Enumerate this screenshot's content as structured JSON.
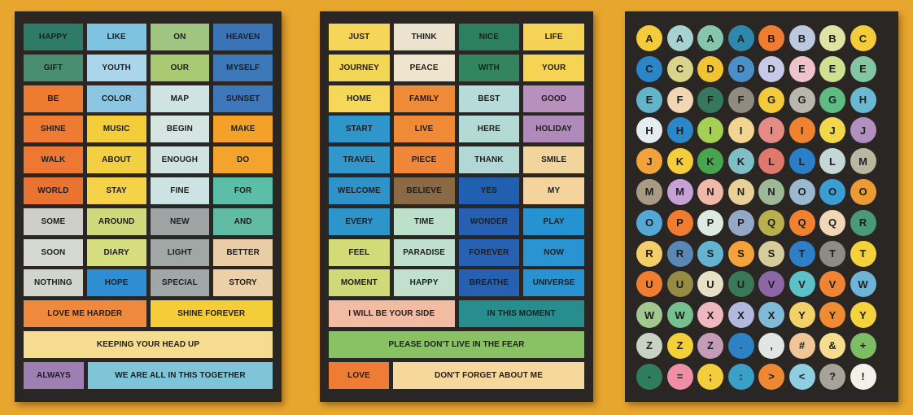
{
  "colors": {
    "background": "#e9a62e",
    "sheet": "#2a2624"
  },
  "sheet1": {
    "words": [
      {
        "t": "HAPPY",
        "c": "#2e7b68"
      },
      {
        "t": "LIKE",
        "c": "#7ec3df"
      },
      {
        "t": "ON",
        "c": "#9fc580"
      },
      {
        "t": "HEAVEN",
        "c": "#3a73b6"
      },
      {
        "t": "GIFT",
        "c": "#4a8e72"
      },
      {
        "t": "YOUTH",
        "c": "#aad5ea"
      },
      {
        "t": "OUR",
        "c": "#a9c973"
      },
      {
        "t": "MYSELF",
        "c": "#3d78b8"
      },
      {
        "t": "BE",
        "c": "#ef7a32"
      },
      {
        "t": "COLOR",
        "c": "#8dc6e2"
      },
      {
        "t": "MAP",
        "c": "#cfe3e3"
      },
      {
        "t": "SUNSET",
        "c": "#3f78ba"
      },
      {
        "t": "SHINE",
        "c": "#ef7b33"
      },
      {
        "t": "MUSIC",
        "c": "#f3cd3a"
      },
      {
        "t": "BEGIN",
        "c": "#d5e6e2"
      },
      {
        "t": "MAKE",
        "c": "#f4a129"
      },
      {
        "t": "WALK",
        "c": "#ee7833"
      },
      {
        "t": "ABOUT",
        "c": "#f3d041"
      },
      {
        "t": "ENOUGH",
        "c": "#cfe4e1"
      },
      {
        "t": "DO",
        "c": "#f4a42c"
      },
      {
        "t": "WORLD",
        "c": "#ea7331"
      },
      {
        "t": "STAY",
        "c": "#f5d349"
      },
      {
        "t": "FINE",
        "c": "#cbe3e2"
      },
      {
        "t": "FOR",
        "c": "#5bbea7"
      },
      {
        "t": "SOME",
        "c": "#cfcfca"
      },
      {
        "t": "AROUND",
        "c": "#cfd97b"
      },
      {
        "t": "NEW",
        "c": "#9ea4a4"
      },
      {
        "t": "AND",
        "c": "#62bba4"
      },
      {
        "t": "SOON",
        "c": "#d6d8d2"
      },
      {
        "t": "DIARY",
        "c": "#d6dd7e"
      },
      {
        "t": "LIGHT",
        "c": "#a1a7a5"
      },
      {
        "t": "BETTER",
        "c": "#e9cda6"
      },
      {
        "t": "NOTHING",
        "c": "#d2d4ce"
      },
      {
        "t": "HOPE",
        "c": "#2f8ed3"
      },
      {
        "t": "SPECIAL",
        "c": "#a0a7a6"
      },
      {
        "t": "STORY",
        "c": "#ecd0a9"
      }
    ],
    "phrases_row1": [
      {
        "t": "LOVE ME HARDER",
        "c": "#ef8a3c"
      },
      {
        "t": "SHINE FOREVER",
        "c": "#f4cd38"
      }
    ],
    "phrase_full": {
      "t": "KEEPING YOUR HEAD UP",
      "c": "#f6dc8e"
    },
    "phrases_last": [
      {
        "t": "ALWAYS",
        "c": "#9d7fb2"
      },
      {
        "t": "WE ARE ALL IN THIS TOGETHER",
        "c": "#7fc4d7"
      }
    ]
  },
  "sheet2": {
    "words": [
      {
        "t": "JUST",
        "c": "#f6d659"
      },
      {
        "t": "THINK",
        "c": "#ece3cf"
      },
      {
        "t": "NICE",
        "c": "#2d7f62"
      },
      {
        "t": "LIFE",
        "c": "#f5d455"
      },
      {
        "t": "JOURNEY",
        "c": "#f4d657"
      },
      {
        "t": "PEACE",
        "c": "#efe5cf"
      },
      {
        "t": "WITH",
        "c": "#33855f"
      },
      {
        "t": "YOUR",
        "c": "#f5d453"
      },
      {
        "t": "HOME",
        "c": "#f5d85a"
      },
      {
        "t": "FAMILY",
        "c": "#ef8b38"
      },
      {
        "t": "BEST",
        "c": "#b6dbd8"
      },
      {
        "t": "GOOD",
        "c": "#b790be"
      },
      {
        "t": "START",
        "c": "#2f96cb"
      },
      {
        "t": "LIVE",
        "c": "#ef8a37"
      },
      {
        "t": "HERE",
        "c": "#b4dad6"
      },
      {
        "t": "HOLIDAY",
        "c": "#b08bb9"
      },
      {
        "t": "TRAVEL",
        "c": "#3298cc"
      },
      {
        "t": "PIECE",
        "c": "#ee873a"
      },
      {
        "t": "THANK",
        "c": "#b2d8d5"
      },
      {
        "t": "SMILE",
        "c": "#f2d49d"
      },
      {
        "t": "WELCOME",
        "c": "#2f93c9"
      },
      {
        "t": "BELIEVE",
        "c": "#8a6a45"
      },
      {
        "t": "YES",
        "c": "#215fb1"
      },
      {
        "t": "MY",
        "c": "#f4d49c"
      },
      {
        "t": "EVERY",
        "c": "#2e95cb"
      },
      {
        "t": "TIME",
        "c": "#bde0cb"
      },
      {
        "t": "WONDER",
        "c": "#2560b2"
      },
      {
        "t": "PLAY",
        "c": "#2592d2"
      },
      {
        "t": "FEEL",
        "c": "#d3db79"
      },
      {
        "t": "PARADISE",
        "c": "#bfe0cc"
      },
      {
        "t": "FOREVER",
        "c": "#2661b2"
      },
      {
        "t": "NOW",
        "c": "#2994d1"
      },
      {
        "t": "MOMENT",
        "c": "#d0d977"
      },
      {
        "t": "HAPPY",
        "c": "#c1e1ce"
      },
      {
        "t": "BREATHE",
        "c": "#2560b1"
      },
      {
        "t": "UNIVERSE",
        "c": "#2893d0"
      }
    ],
    "phrases_row1": [
      {
        "t": "I WILL BE YOUR SIDE",
        "c": "#f2bba3"
      },
      {
        "t": "IN THIS MOMENT",
        "c": "#278d8d"
      }
    ],
    "phrase_full": {
      "t": "PLEASE DON'T LIVE IN THE FEAR",
      "c": "#88c265"
    },
    "phrases_last": [
      {
        "t": "LOVE",
        "c": "#ee7c35"
      },
      {
        "t": "DON'T FORGET ABOUT ME",
        "c": "#f6d89c"
      }
    ]
  },
  "sheet3": {
    "letters": [
      {
        "t": "A",
        "c": "#f3cb3b"
      },
      {
        "t": "A",
        "c": "#a6d3cf"
      },
      {
        "t": "A",
        "c": "#86c6ac"
      },
      {
        "t": "A",
        "c": "#2f88a9"
      },
      {
        "t": "B",
        "c": "#ef7c31"
      },
      {
        "t": "B",
        "c": "#bcc8de"
      },
      {
        "t": "B",
        "c": "#dfe3a4"
      },
      {
        "t": "C",
        "c": "#f4cc3a"
      },
      {
        "t": "C",
        "c": "#2a86c8"
      },
      {
        "t": "C",
        "c": "#d8d58a"
      },
      {
        "t": "D",
        "c": "#f3c432"
      },
      {
        "t": "D",
        "c": "#4a8fc8"
      },
      {
        "t": "D",
        "c": "#c7c9e7"
      },
      {
        "t": "E",
        "c": "#efc3ce"
      },
      {
        "t": "E",
        "c": "#cfe190"
      },
      {
        "t": "E",
        "c": "#82c6a4"
      },
      {
        "t": "E",
        "c": "#62b4c8"
      },
      {
        "t": "F",
        "c": "#f0d7b1"
      },
      {
        "t": "F",
        "c": "#35785f"
      },
      {
        "t": "F",
        "c": "#8f8b7f"
      },
      {
        "t": "G",
        "c": "#f3cb3a"
      },
      {
        "t": "G",
        "c": "#b9b6ad"
      },
      {
        "t": "G",
        "c": "#5dbb83"
      },
      {
        "t": "H",
        "c": "#6ab9d2"
      },
      {
        "t": "H",
        "c": "#e4ecef"
      },
      {
        "t": "H",
        "c": "#2b87c8"
      },
      {
        "t": "I",
        "c": "#a6cf55"
      },
      {
        "t": "I",
        "c": "#f2d491"
      },
      {
        "t": "I",
        "c": "#e58b86"
      },
      {
        "t": "I",
        "c": "#ef8330"
      },
      {
        "t": "J",
        "c": "#f2d64b"
      },
      {
        "t": "J",
        "c": "#b28fc1"
      },
      {
        "t": "J",
        "c": "#f0a23b"
      },
      {
        "t": "K",
        "c": "#f3cd3c"
      },
      {
        "t": "K",
        "c": "#46a54e"
      },
      {
        "t": "K",
        "c": "#7fbec4"
      },
      {
        "t": "L",
        "c": "#e0796d"
      },
      {
        "t": "L",
        "c": "#2b7fc8"
      },
      {
        "t": "L",
        "c": "#c4d7d6"
      },
      {
        "t": "M",
        "c": "#b9b7a0"
      },
      {
        "t": "M",
        "c": "#a99a84"
      },
      {
        "t": "M",
        "c": "#c5a1d5"
      },
      {
        "t": "N",
        "c": "#efb8a8"
      },
      {
        "t": "N",
        "c": "#e9d098"
      },
      {
        "t": "N",
        "c": "#9db899"
      },
      {
        "t": "O",
        "c": "#9ab9d0"
      },
      {
        "t": "O",
        "c": "#3b9ed3"
      },
      {
        "t": "O",
        "c": "#ec9a33"
      },
      {
        "t": "O",
        "c": "#53a8d6"
      },
      {
        "t": "P",
        "c": "#ef7c30"
      },
      {
        "t": "P",
        "c": "#dfe9e4"
      },
      {
        "t": "P",
        "c": "#94a8c6"
      },
      {
        "t": "Q",
        "c": "#b7b04c"
      },
      {
        "t": "Q",
        "c": "#ef8131"
      },
      {
        "t": "Q",
        "c": "#f2d7b6"
      },
      {
        "t": "R",
        "c": "#4a9a7a"
      },
      {
        "t": "R",
        "c": "#f3cd6a"
      },
      {
        "t": "R",
        "c": "#5b87b6"
      },
      {
        "t": "S",
        "c": "#64b4cf"
      },
      {
        "t": "S",
        "c": "#f3a23c"
      },
      {
        "t": "S",
        "c": "#d6cb9a"
      },
      {
        "t": "T",
        "c": "#2f7fc6"
      },
      {
        "t": "T",
        "c": "#8f8c85"
      },
      {
        "t": "T",
        "c": "#f5d13c"
      },
      {
        "t": "U",
        "c": "#f07e30"
      },
      {
        "t": "U",
        "c": "#968a45"
      },
      {
        "t": "U",
        "c": "#e7e0c6"
      },
      {
        "t": "U",
        "c": "#3a7858"
      },
      {
        "t": "V",
        "c": "#8d66a6"
      },
      {
        "t": "V",
        "c": "#5cc2c8"
      },
      {
        "t": "V",
        "c": "#ef8435"
      },
      {
        "t": "W",
        "c": "#6cb4d8"
      },
      {
        "t": "W",
        "c": "#a2c890"
      },
      {
        "t": "W",
        "c": "#76c090"
      },
      {
        "t": "X",
        "c": "#efb7c0"
      },
      {
        "t": "X",
        "c": "#b1b9de"
      },
      {
        "t": "X",
        "c": "#7fbad9"
      },
      {
        "t": "Y",
        "c": "#f3d16a"
      },
      {
        "t": "Y",
        "c": "#ef8b33"
      },
      {
        "t": "Y",
        "c": "#f5d33f"
      },
      {
        "t": "Z",
        "c": "#c8d3c4"
      },
      {
        "t": "Z",
        "c": "#f3d03a"
      },
      {
        "t": "Z",
        "c": "#c49cb8"
      },
      {
        "t": ".",
        "c": "#2d82c5"
      },
      {
        "t": ",",
        "c": "#e1e6e4"
      },
      {
        "t": "#",
        "c": "#f0c597"
      },
      {
        "t": "&",
        "c": "#f6dc8f"
      },
      {
        "t": "+",
        "c": "#7fbd64"
      },
      {
        "t": "-",
        "c": "#2f7d5e"
      },
      {
        "t": "=",
        "c": "#ef8ea4"
      },
      {
        "t": ";",
        "c": "#f3cd3b"
      },
      {
        "t": ":",
        "c": "#3aa0c8"
      },
      {
        "t": ">",
        "c": "#ef8833"
      },
      {
        "t": "<",
        "c": "#8fcde0"
      },
      {
        "t": "?",
        "c": "#a7a39a"
      },
      {
        "t": "!",
        "c": "#f4f1e8"
      }
    ]
  }
}
